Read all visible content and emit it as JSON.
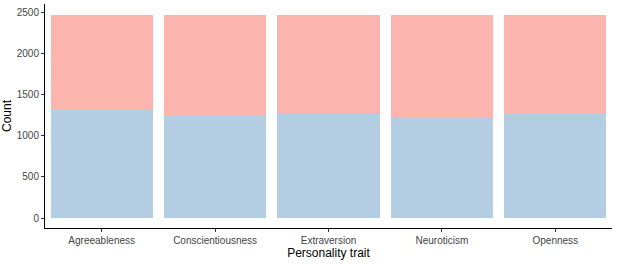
{
  "chart_data": {
    "type": "bar",
    "stacked": true,
    "grid": false,
    "x_label": "Personality trait",
    "y_label": "Count",
    "categories": [
      "Agreeableness",
      "Conscientiousness",
      "Extraversion",
      "Neuroticism",
      "Openness"
    ],
    "series": [
      {
        "color": "#b3cde3",
        "values": [
          1310,
          1245,
          1275,
          1230,
          1270
        ]
      },
      {
        "color": "#fbb4ae",
        "values": [
          1160,
          1225,
          1195,
          1240,
          1200
        ]
      }
    ],
    "ylim": [
      -120,
      2600
    ],
    "yticks": [
      0,
      500,
      1000,
      1500,
      2000,
      2500
    ]
  }
}
